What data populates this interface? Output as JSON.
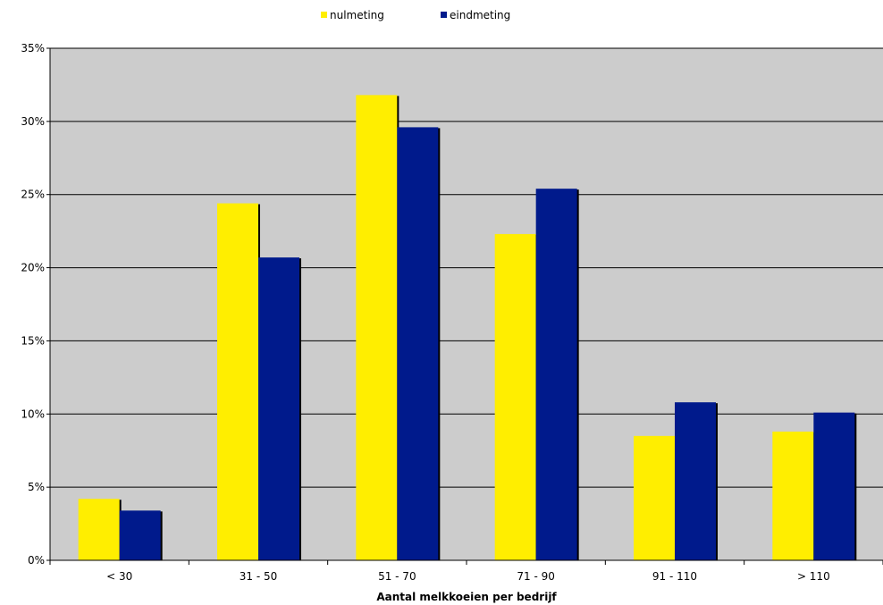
{
  "chart_data": {
    "type": "bar",
    "categories": [
      "< 30",
      "31 - 50",
      "51 - 70",
      "71 - 90",
      "91 - 110",
      "> 110"
    ],
    "series": [
      {
        "name": "nulmeting",
        "values": [
          4.2,
          24.4,
          31.8,
          22.3,
          8.5,
          8.8
        ],
        "color": "#ffee00"
      },
      {
        "name": "eindmeting",
        "values": [
          3.4,
          20.7,
          29.6,
          25.4,
          10.8,
          10.1
        ],
        "color": "#001a8c"
      }
    ],
    "xlabel": "Aantal melkkoeien per bedrijf",
    "ylabel": "",
    "ylim": [
      0,
      35
    ],
    "yticks": [
      0,
      5,
      10,
      15,
      20,
      25,
      30,
      35
    ],
    "ytick_labels": [
      "0%",
      "5%",
      "10%",
      "15%",
      "20%",
      "25%",
      "30%",
      "35%"
    ],
    "grid": true,
    "plot_background": "#cccccc",
    "legend_position": "top-center"
  }
}
